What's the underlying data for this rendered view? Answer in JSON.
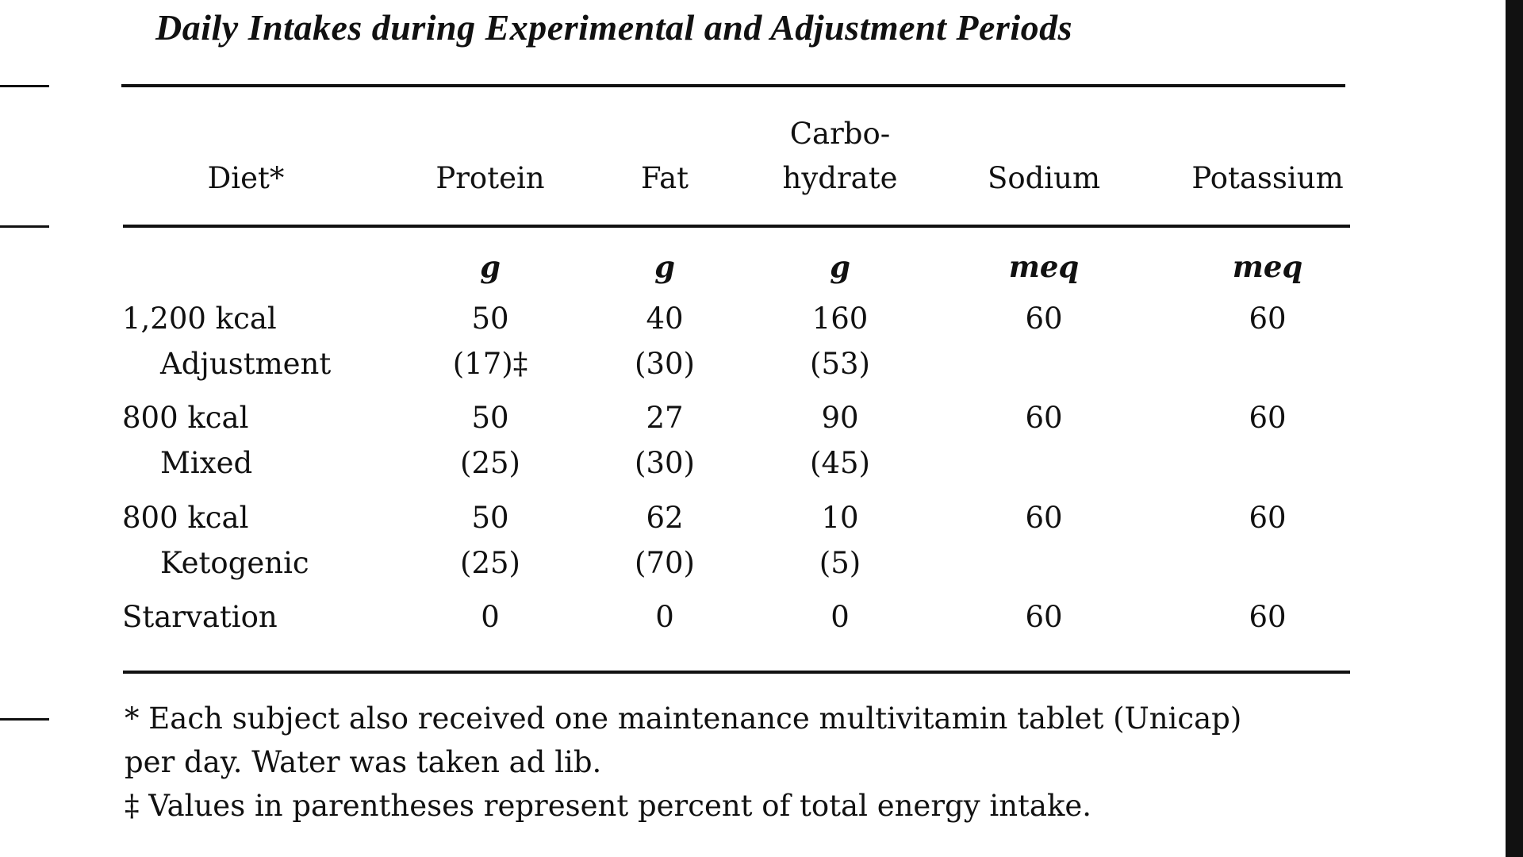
{
  "title": "Daily Intakes during Experimental and Adjustment Periods",
  "headers": {
    "diet": "Diet*",
    "protein": "Protein",
    "fat": "Fat",
    "carb_line1": "Carbo-",
    "carb_line2": "hydrate",
    "sodium": "Sodium",
    "potassium": "Potassium"
  },
  "units": [
    "g",
    "g",
    "g",
    "meq",
    "meq"
  ],
  "rows": [
    {
      "label": "1,200 kcal",
      "values": [
        "50",
        "40",
        "160",
        "60",
        "60"
      ]
    },
    {
      "label": "Adjustment",
      "indent": true,
      "values": [
        "(17)‡",
        "(30)",
        "(53)",
        "",
        ""
      ]
    },
    {
      "label": "800 kcal",
      "values": [
        "50",
        "27",
        "90",
        "60",
        "60"
      ]
    },
    {
      "label": "Mixed",
      "indent": true,
      "values": [
        "(25)",
        "(30)",
        "(45)",
        "",
        ""
      ]
    },
    {
      "label": "800 kcal",
      "values": [
        "50",
        "62",
        "10",
        "60",
        "60"
      ]
    },
    {
      "label": "Ketogenic",
      "indent": true,
      "values": [
        "(25)",
        "(70)",
        "(5)",
        "",
        ""
      ]
    },
    {
      "label": "Starvation",
      "values": [
        "0",
        "0",
        "0",
        "60",
        "60"
      ]
    }
  ],
  "footnotes": {
    "star_line1": "* Each subject also received one maintenance multivitamin tablet (Unicap)",
    "star_line2": "per day. Water was taken ad lib.",
    "dagger": "‡ Values in parentheses represent percent of total energy intake."
  }
}
